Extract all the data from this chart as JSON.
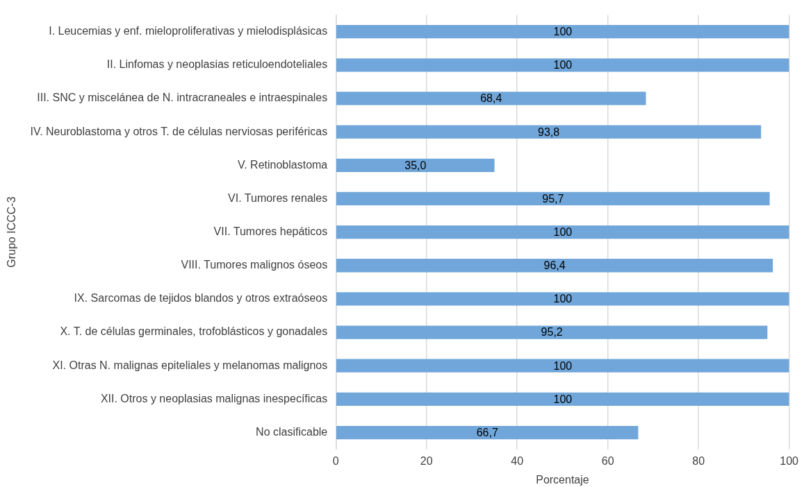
{
  "chart_data": {
    "type": "bar",
    "orientation": "horizontal",
    "xlabel": "Porcentaje",
    "ylabel": "Grupo ICCC-3",
    "categories": [
      "I. Leucemias y enf. mieloproliferativas y mielodisplásicas",
      "II. Linfomas y neoplasias reticuloendoteliales",
      "III. SNC y miscelánea de N. intracraneales e intraespinales",
      "IV. Neuroblastoma y otros T. de células nerviosas periféricas",
      "V. Retinoblastoma",
      "VI. Tumores renales",
      "VII. Tumores hepáticos",
      "VIII. Tumores malignos óseos",
      "IX. Sarcomas de tejidos blandos y otros extraóseos",
      "X. T. de células germinales, trofoblásticos y gonadales",
      "XI. Otras N. malignas epiteliales y melanomas malignos",
      "XII. Otros y neoplasias malignas inespecíficas",
      "No clasificable"
    ],
    "values": [
      100,
      100,
      68.4,
      93.8,
      35.0,
      95.7,
      100,
      96.4,
      100,
      95.2,
      100,
      100,
      66.7
    ],
    "value_labels": [
      "100",
      "100",
      "68,4",
      "93,8",
      "35,0",
      "95,7",
      "100",
      "96,4",
      "100",
      "95,2",
      "100",
      "100",
      "66,7"
    ],
    "color": "#70a6d9",
    "xlim": [
      0,
      100
    ],
    "xticks": [
      0,
      20,
      40,
      60,
      80,
      100
    ],
    "grid": "x",
    "legend": false
  }
}
